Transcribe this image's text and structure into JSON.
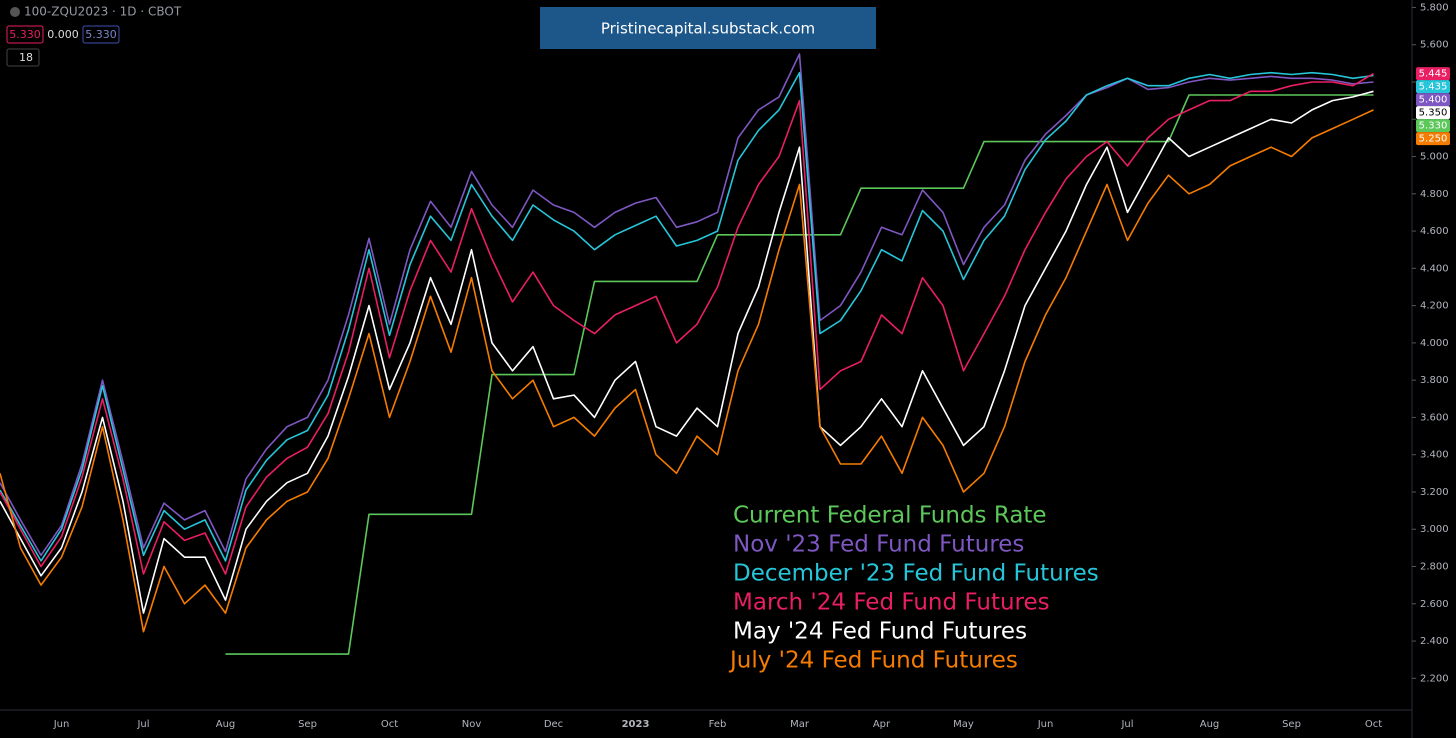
{
  "header": {
    "symbol": "100-ZQU2023 · 1D · CBOT",
    "badges": [
      "5.330",
      "0.000",
      "5.330"
    ],
    "interval": "18"
  },
  "watermark": "Pristinecapital.substack.com",
  "chart_data": {
    "type": "line",
    "grid": false,
    "categories": [
      null,
      null,
      null,
      "Jun",
      null,
      null,
      null,
      "Jul",
      null,
      null,
      null,
      "Aug",
      null,
      null,
      null,
      "Sep",
      null,
      null,
      null,
      "Oct",
      null,
      null,
      null,
      "Nov",
      null,
      null,
      null,
      "Dec",
      null,
      null,
      null,
      "2023",
      null,
      null,
      null,
      "Feb",
      null,
      null,
      null,
      "Mar",
      null,
      null,
      null,
      "Apr",
      null,
      null,
      null,
      "May",
      null,
      null,
      null,
      "Jun",
      null,
      null,
      null,
      "Jul",
      null,
      null,
      null,
      "Aug",
      null,
      null,
      null,
      "Sep",
      null,
      null,
      null,
      "Oct"
    ],
    "ylim": [
      2.03,
      5.84
    ],
    "yticks": [
      {
        "value": 2.2,
        "label": "2.200"
      },
      {
        "value": 2.4,
        "label": "2.400"
      },
      {
        "value": 2.6,
        "label": "2.600"
      },
      {
        "value": 2.8,
        "label": "2.800"
      },
      {
        "value": 3,
        "label": "3.000"
      },
      {
        "value": 3.2,
        "label": "3.200"
      },
      {
        "value": 3.4,
        "label": "3.400"
      },
      {
        "value": 3.6,
        "label": "3.600"
      },
      {
        "value": 3.8,
        "label": "3.800"
      },
      {
        "value": 4,
        "label": "4.000"
      },
      {
        "value": 4.2,
        "label": "4.200"
      },
      {
        "value": 4.4,
        "label": "4.400"
      },
      {
        "value": 4.6,
        "label": "4.600"
      },
      {
        "value": 4.8,
        "label": "4.800"
      },
      {
        "value": 5,
        "label": "5.000"
      },
      {
        "value": 5.2,
        "label": "5.200"
      },
      {
        "value": 5.4,
        "label": "5.400"
      },
      {
        "value": 5.6,
        "label": "5.600"
      },
      {
        "value": 5.8,
        "label": "5.800"
      }
    ],
    "series": [
      {
        "name": "Current Federal Funds Rate",
        "color": "#5cc85a",
        "values": [
          null,
          null,
          null,
          null,
          null,
          null,
          null,
          null,
          null,
          null,
          null,
          2.33,
          2.33,
          2.33,
          2.33,
          2.33,
          2.33,
          2.33,
          3.08,
          3.08,
          3.08,
          3.08,
          3.08,
          3.08,
          3.83,
          3.83,
          3.83,
          3.83,
          3.83,
          4.33,
          4.33,
          4.33,
          4.33,
          4.33,
          4.33,
          4.58,
          4.58,
          4.58,
          4.58,
          4.58,
          4.58,
          4.58,
          4.83,
          4.83,
          4.83,
          4.83,
          4.83,
          4.83,
          5.08,
          5.08,
          5.08,
          5.08,
          5.08,
          5.08,
          5.08,
          5.08,
          5.08,
          5.08,
          5.33,
          5.33,
          5.33,
          5.33,
          5.33,
          5.33,
          5.33,
          5.33,
          5.33,
          5.33
        ],
        "value_labels": [
          null,
          null,
          null,
          null,
          null,
          null,
          null,
          null,
          null,
          null,
          null,
          null,
          null,
          null,
          null,
          null,
          null,
          null,
          null,
          null,
          null,
          null,
          null,
          null,
          null,
          null,
          null,
          null,
          null,
          null,
          null,
          null,
          null,
          null,
          null,
          null,
          null,
          null,
          null,
          null,
          null,
          null,
          null,
          null,
          null,
          null,
          null,
          null,
          null,
          null,
          null,
          null,
          null,
          null,
          null,
          null,
          null,
          null,
          null,
          null,
          null,
          null,
          null,
          null,
          null,
          null,
          null,
          "5.330"
        ]
      },
      {
        "name": "Nov '23 Fed Fund Futures",
        "color": "#7e57c2",
        "values": [
          3.25,
          3.05,
          2.86,
          3.02,
          3.35,
          3.8,
          3.36,
          2.9,
          3.14,
          3.05,
          3.1,
          2.88,
          3.27,
          3.43,
          3.55,
          3.6,
          3.8,
          4.15,
          4.56,
          4.1,
          4.5,
          4.76,
          4.62,
          4.92,
          4.74,
          4.62,
          4.82,
          4.74,
          4.7,
          4.62,
          4.7,
          4.75,
          4.78,
          4.62,
          4.65,
          4.7,
          5.1,
          5.25,
          5.32,
          5.55,
          4.12,
          4.2,
          4.38,
          4.62,
          4.58,
          4.82,
          4.7,
          4.42,
          4.62,
          4.74,
          4.98,
          5.12,
          5.22,
          5.33,
          5.37,
          5.42,
          5.36,
          5.37,
          5.4,
          5.42,
          5.41,
          5.42,
          5.43,
          5.42,
          5.42,
          5.41,
          5.39,
          5.4
        ],
        "value_labels": [
          null,
          null,
          null,
          null,
          null,
          null,
          null,
          null,
          null,
          null,
          null,
          null,
          null,
          null,
          null,
          null,
          null,
          null,
          null,
          null,
          null,
          null,
          null,
          null,
          null,
          null,
          null,
          null,
          null,
          null,
          null,
          null,
          null,
          null,
          null,
          null,
          null,
          null,
          null,
          null,
          null,
          null,
          null,
          null,
          null,
          null,
          null,
          null,
          null,
          null,
          null,
          null,
          null,
          null,
          null,
          null,
          null,
          null,
          null,
          null,
          null,
          null,
          null,
          null,
          null,
          null,
          null,
          "5.400"
        ]
      },
      {
        "name": "December '23 Fed Fund Futures",
        "color": "#26c6da",
        "values": [
          3.21,
          3.02,
          2.83,
          3.0,
          3.32,
          3.77,
          3.32,
          2.86,
          3.1,
          3.0,
          3.05,
          2.83,
          3.21,
          3.37,
          3.48,
          3.53,
          3.72,
          4.07,
          4.5,
          4.04,
          4.42,
          4.68,
          4.55,
          4.85,
          4.68,
          4.55,
          4.74,
          4.66,
          4.6,
          4.5,
          4.58,
          4.63,
          4.68,
          4.52,
          4.55,
          4.6,
          4.98,
          5.14,
          5.25,
          5.45,
          4.05,
          4.12,
          4.28,
          4.5,
          4.44,
          4.71,
          4.6,
          4.34,
          4.55,
          4.68,
          4.93,
          5.09,
          5.19,
          5.33,
          5.38,
          5.42,
          5.38,
          5.38,
          5.42,
          5.44,
          5.42,
          5.44,
          5.45,
          5.44,
          5.45,
          5.44,
          5.42,
          5.435
        ],
        "value_labels": [
          null,
          null,
          null,
          null,
          null,
          null,
          null,
          null,
          null,
          null,
          null,
          null,
          null,
          null,
          null,
          null,
          null,
          null,
          null,
          null,
          null,
          null,
          null,
          null,
          null,
          null,
          null,
          null,
          null,
          null,
          null,
          null,
          null,
          null,
          null,
          null,
          null,
          null,
          null,
          null,
          null,
          null,
          null,
          null,
          null,
          null,
          null,
          null,
          null,
          null,
          null,
          null,
          null,
          null,
          null,
          null,
          null,
          null,
          null,
          null,
          null,
          null,
          null,
          null,
          null,
          null,
          null,
          "5.435"
        ]
      },
      {
        "name": "March '24 Fed Fund Futures",
        "color": "#e91e63",
        "values": [
          3.2,
          3.0,
          2.8,
          2.96,
          3.28,
          3.7,
          3.27,
          2.76,
          3.04,
          2.94,
          2.98,
          2.76,
          3.12,
          3.28,
          3.38,
          3.44,
          3.62,
          3.95,
          4.4,
          3.92,
          4.28,
          4.55,
          4.38,
          4.72,
          4.45,
          4.22,
          4.38,
          4.2,
          4.12,
          4.05,
          4.15,
          4.2,
          4.25,
          4.0,
          4.1,
          4.3,
          4.62,
          4.85,
          5.0,
          5.3,
          3.75,
          3.85,
          3.9,
          4.15,
          4.05,
          4.35,
          4.2,
          3.85,
          4.05,
          4.25,
          4.5,
          4.7,
          4.88,
          5.0,
          5.08,
          4.95,
          5.1,
          5.2,
          5.25,
          5.3,
          5.3,
          5.35,
          5.35,
          5.38,
          5.4,
          5.4,
          5.38,
          5.445
        ],
        "value_labels": [
          null,
          null,
          null,
          null,
          null,
          null,
          null,
          null,
          null,
          null,
          null,
          null,
          null,
          null,
          null,
          null,
          null,
          null,
          null,
          null,
          null,
          null,
          null,
          null,
          null,
          null,
          null,
          null,
          null,
          null,
          null,
          null,
          null,
          null,
          null,
          null,
          null,
          null,
          null,
          null,
          null,
          null,
          null,
          null,
          null,
          null,
          null,
          null,
          null,
          null,
          null,
          null,
          null,
          null,
          null,
          null,
          null,
          null,
          null,
          null,
          null,
          null,
          null,
          null,
          null,
          null,
          null,
          "5.445"
        ]
      },
      {
        "name": "May '24 Fed Fund Futures",
        "color": "#ffffff",
        "values": [
          3.15,
          2.95,
          2.75,
          2.9,
          3.2,
          3.6,
          3.15,
          2.55,
          2.95,
          2.85,
          2.85,
          2.62,
          3.0,
          3.15,
          3.25,
          3.3,
          3.5,
          3.82,
          4.2,
          3.75,
          4.0,
          4.35,
          4.1,
          4.5,
          4.0,
          3.85,
          3.98,
          3.7,
          3.72,
          3.6,
          3.8,
          3.9,
          3.55,
          3.5,
          3.65,
          3.55,
          4.05,
          4.3,
          4.7,
          5.05,
          3.55,
          3.45,
          3.55,
          3.7,
          3.55,
          3.85,
          3.65,
          3.45,
          3.55,
          3.85,
          4.2,
          4.4,
          4.6,
          4.85,
          5.05,
          4.7,
          4.9,
          5.1,
          5.0,
          5.05,
          5.1,
          5.15,
          5.2,
          5.18,
          5.25,
          5.3,
          5.32,
          5.35
        ],
        "value_labels": [
          null,
          null,
          null,
          null,
          null,
          null,
          null,
          null,
          null,
          null,
          null,
          null,
          null,
          null,
          null,
          null,
          null,
          null,
          null,
          null,
          null,
          null,
          null,
          null,
          null,
          null,
          null,
          null,
          null,
          null,
          null,
          null,
          null,
          null,
          null,
          null,
          null,
          null,
          null,
          null,
          null,
          null,
          null,
          null,
          null,
          null,
          null,
          null,
          null,
          null,
          null,
          null,
          null,
          null,
          null,
          null,
          null,
          null,
          null,
          null,
          null,
          null,
          null,
          null,
          null,
          null,
          null,
          "5.350"
        ]
      },
      {
        "name": "July '24 Fed Fund Futures",
        "color": "#f57c00",
        "values": [
          3.3,
          2.9,
          2.7,
          2.85,
          3.12,
          3.55,
          3.05,
          2.45,
          2.8,
          2.6,
          2.7,
          2.55,
          2.9,
          3.05,
          3.15,
          3.2,
          3.38,
          3.7,
          4.05,
          3.6,
          3.9,
          4.25,
          3.95,
          4.35,
          3.85,
          3.7,
          3.8,
          3.55,
          3.6,
          3.5,
          3.65,
          3.75,
          3.4,
          3.3,
          3.5,
          3.4,
          3.85,
          4.1,
          4.5,
          4.85,
          3.55,
          3.35,
          3.35,
          3.5,
          3.3,
          3.6,
          3.45,
          3.2,
          3.3,
          3.55,
          3.9,
          4.15,
          4.35,
          4.6,
          4.85,
          4.55,
          4.75,
          4.9,
          4.8,
          4.85,
          4.95,
          5.0,
          5.05,
          5.0,
          5.1,
          5.15,
          5.2,
          5.25
        ],
        "value_labels": [
          null,
          null,
          null,
          null,
          null,
          null,
          null,
          null,
          null,
          null,
          null,
          null,
          null,
          null,
          null,
          null,
          null,
          null,
          null,
          null,
          null,
          null,
          null,
          null,
          null,
          null,
          null,
          null,
          null,
          null,
          null,
          null,
          null,
          null,
          null,
          null,
          null,
          null,
          null,
          null,
          null,
          null,
          null,
          null,
          null,
          null,
          null,
          null,
          null,
          null,
          null,
          null,
          null,
          null,
          null,
          null,
          null,
          null,
          null,
          null,
          null,
          null,
          null,
          null,
          null,
          null,
          null,
          "5.250"
        ]
      }
    ]
  }
}
